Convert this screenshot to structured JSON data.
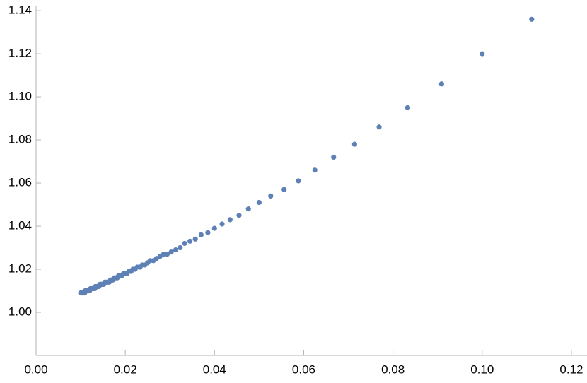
{
  "chart_data": {
    "type": "scatter",
    "color": "#5e81b5",
    "xlim": [
      0,
      0.1235
    ],
    "ylim": [
      0.98,
      1.142
    ],
    "xticks": [
      {
        "value": 0,
        "label": "0.00"
      },
      0.02,
      0.04,
      0.06,
      0.08,
      {
        "value": 0.1,
        "label": "0.10"
      },
      0.12
    ],
    "yticks": [
      {
        "value": 1,
        "label": "1.00"
      },
      1.02,
      1.04,
      1.06,
      1.08,
      {
        "value": 1.1,
        "label": "1.10"
      },
      1.12,
      1.14
    ],
    "x": [
      0.1111,
      0.1,
      0.0909,
      0.0833,
      0.0769,
      0.0714,
      0.0667,
      0.0625,
      0.0588,
      0.0556,
      0.0526,
      0.05,
      0.0476,
      0.0455,
      0.0435,
      0.0417,
      0.04,
      0.0385,
      0.037,
      0.0357,
      0.0345,
      0.0333,
      0.0323,
      0.0313,
      0.0303,
      0.0294,
      0.0286,
      0.0278,
      0.027,
      0.0263,
      0.0256,
      0.025,
      0.0244,
      0.0238,
      0.0233,
      0.0227,
      0.0222,
      0.0217,
      0.0213,
      0.0208,
      0.0204,
      0.02,
      0.0196,
      0.0192,
      0.0189,
      0.0185,
      0.0182,
      0.0179,
      0.0175,
      0.0172,
      0.0169,
      0.0167,
      0.0164,
      0.0161,
      0.0159,
      0.0156,
      0.0154,
      0.0152,
      0.0149,
      0.0147,
      0.0145,
      0.0143,
      0.0141,
      0.0139,
      0.0137,
      0.0135,
      0.0133,
      0.0132,
      0.013,
      0.0128,
      0.0127,
      0.0125,
      0.0123,
      0.0122,
      0.012,
      0.0119,
      0.0118,
      0.0116,
      0.0115,
      0.0114,
      0.0112,
      0.0111,
      0.011,
      0.0109,
      0.0108,
      0.0106,
      0.0105,
      0.0104,
      0.0103,
      0.0102,
      0.0101,
      0.01
    ],
    "values": [
      1.136,
      1.12,
      1.106,
      1.095,
      1.086,
      1.078,
      1.072,
      1.066,
      1.061,
      1.057,
      1.054,
      1.051,
      1.048,
      1.045,
      1.043,
      1.041,
      1.039,
      1.037,
      1.036,
      1.034,
      1.033,
      1.032,
      1.03,
      1.029,
      1.028,
      1.027,
      1.027,
      1.026,
      1.025,
      1.024,
      1.024,
      1.023,
      1.022,
      1.022,
      1.021,
      1.021,
      1.02,
      1.02,
      1.019,
      1.019,
      1.018,
      1.018,
      1.018,
      1.017,
      1.017,
      1.017,
      1.016,
      1.016,
      1.016,
      1.015,
      1.015,
      1.015,
      1.014,
      1.014,
      1.014,
      1.014,
      1.014,
      1.013,
      1.013,
      1.013,
      1.013,
      1.013,
      1.012,
      1.012,
      1.012,
      1.012,
      1.012,
      1.011,
      1.011,
      1.011,
      1.011,
      1.011,
      1.011,
      1.011,
      1.01,
      1.01,
      1.01,
      1.01,
      1.01,
      1.01,
      1.01,
      1.01,
      1.01,
      1.009,
      1.009,
      1.009,
      1.009,
      1.009,
      1.009,
      1.009,
      1.009,
      1.009
    ]
  }
}
